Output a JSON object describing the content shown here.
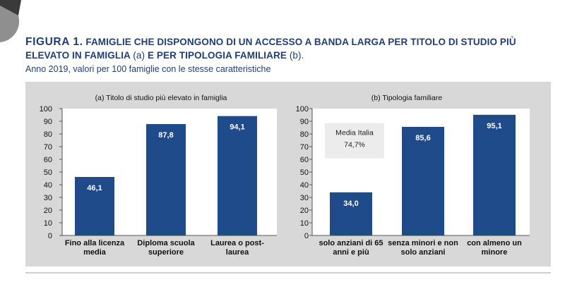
{
  "figure": {
    "label": "FIGURA 1.",
    "title_bold_1": "FAMIGLIE CHE DISPONGONO DI UN ACCESSO A BANDA LARGA PER TITOLO DI STUDIO PIÙ ELEVATO IN FAMIGLIA",
    "title_light_1": "(a)",
    "title_bold_2": "E PER TIPOLOGIA FAMILIARE",
    "title_light_2": "(b).",
    "subtitle": "Anno 2019, valori per 100 famiglie con le stesse caratteristiche"
  },
  "colors": {
    "bar": "#1f4b8a",
    "title": "#1f3f74",
    "panel": "#d8d8d8",
    "plot": "#ffffff",
    "annotation_box": "#ececec"
  },
  "chart_data": [
    {
      "type": "bar",
      "title": "(a) Titolo  di studio più elevato in famiglia",
      "categories": [
        [
          "Fino alla licenza",
          "media"
        ],
        [
          "Diploma scuola",
          "superiore"
        ],
        [
          "Laurea o post-",
          "laurea"
        ]
      ],
      "values": [
        46.1,
        87.8,
        94.1
      ],
      "value_labels": [
        "46,1",
        "87,8",
        "94,1"
      ],
      "ylim": [
        0,
        100
      ],
      "yticks": [
        0,
        10,
        20,
        30,
        40,
        50,
        60,
        70,
        80,
        90,
        100
      ],
      "grid": false,
      "legend": "none"
    },
    {
      "type": "bar",
      "title": "(b) Tipologia  familiare",
      "categories": [
        [
          "solo anziani di 65",
          "anni e più"
        ],
        [
          "senza minori e non",
          "solo anziani"
        ],
        [
          "con almeno un",
          "minore"
        ]
      ],
      "values": [
        34.0,
        85.6,
        95.1
      ],
      "value_labels": [
        "34,0",
        "85,6",
        "95,1"
      ],
      "ylim": [
        0,
        100
      ],
      "yticks": [
        0,
        10,
        20,
        30,
        40,
        50,
        60,
        70,
        80,
        90,
        100
      ],
      "grid": false,
      "legend": "none",
      "annotations": [
        {
          "lines": [
            "Media Italia",
            "74,7%"
          ],
          "y": 74.7
        }
      ]
    }
  ]
}
